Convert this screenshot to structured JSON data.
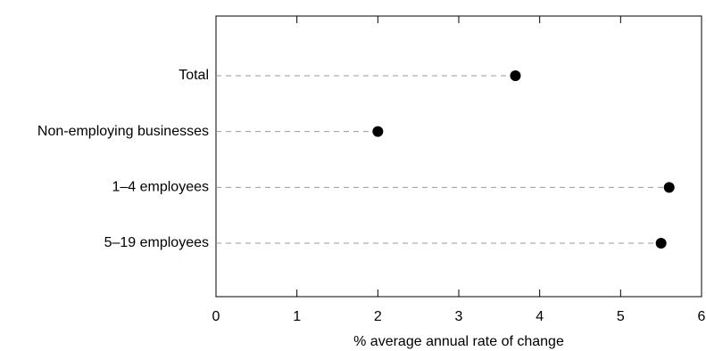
{
  "chart_data": {
    "type": "dot",
    "categories": [
      "Total",
      "Non-employing businesses",
      "1–4 employees",
      "5–19 employees"
    ],
    "values": [
      3.7,
      2.0,
      5.6,
      5.5
    ],
    "color": "#000000",
    "xlabel": "% average annual rate of change",
    "xlim": [
      0,
      6
    ],
    "xticks": [
      0,
      1,
      2,
      3,
      4,
      5,
      6
    ]
  }
}
